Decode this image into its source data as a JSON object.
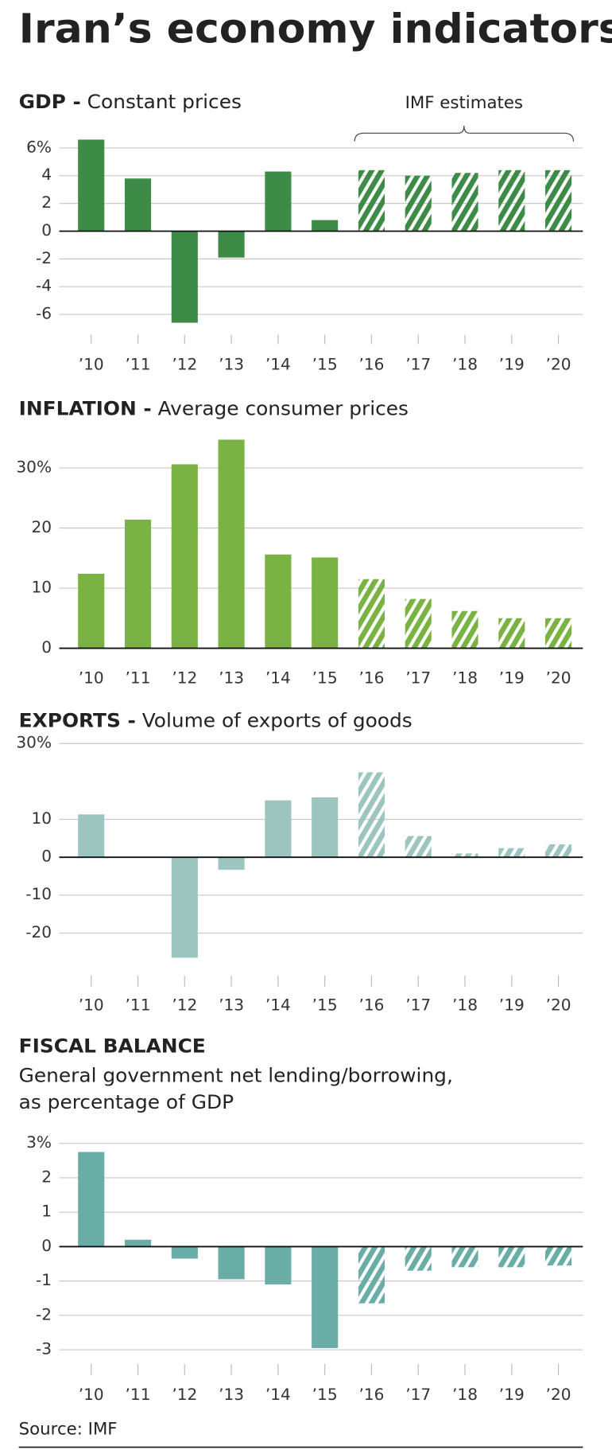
{
  "title": "Iran’s economy indicators",
  "source": "Source: IMF",
  "chart_data": [
    {
      "type": "bar",
      "title": "GDP -",
      "subtitle": "Constant prices",
      "annotation": "IMF estimates",
      "categories": [
        "’10",
        "’11",
        "’12",
        "’13",
        "’14",
        "’15",
        "’16",
        "’17",
        "’18",
        "’19",
        "’20"
      ],
      "values": [
        6.6,
        3.8,
        -6.6,
        -1.9,
        4.3,
        0.8,
        4.4,
        4.0,
        4.2,
        4.4,
        4.4
      ],
      "color": "#3d8b46",
      "hatch_start": "’16",
      "ylim": [
        -7,
        7
      ],
      "yticks": [
        {
          "value": 6,
          "label": "6%"
        },
        4,
        2,
        0,
        -2,
        -4,
        -6
      ],
      "grid": true
    },
    {
      "type": "bar",
      "title": "INFLATION -",
      "subtitle": "Average consumer prices",
      "categories": [
        "’10",
        "’11",
        "’12",
        "’13",
        "’14",
        "’15",
        "’16",
        "’17",
        "’18",
        "’19",
        "’20"
      ],
      "values": [
        12.4,
        21.4,
        30.6,
        34.7,
        15.6,
        15.1,
        11.5,
        8.2,
        6.2,
        5.0,
        5.0
      ],
      "color": "#7ab343",
      "hatch_start": "’16",
      "ylim": [
        0,
        35
      ],
      "yticks": [
        {
          "value": 30,
          "label": "30%"
        },
        20,
        10,
        0
      ],
      "grid": true
    },
    {
      "type": "bar",
      "title": "EXPORTS -",
      "subtitle": "Volume of exports of goods",
      "categories": [
        "’10",
        "’11",
        "’12",
        "’13",
        "’14",
        "’15",
        "’16",
        "’17",
        "’18",
        "’19",
        "’20"
      ],
      "values": [
        11.3,
        0,
        -26.5,
        -3.3,
        15.0,
        15.8,
        22.4,
        5.6,
        1.0,
        2.4,
        3.4
      ],
      "color": "#9dc5c0",
      "hatch_start": "’16",
      "ylim": [
        -30,
        32
      ],
      "yticks": [
        {
          "value": 30,
          "label": "30%"
        },
        10,
        0,
        -10,
        -20
      ],
      "grid": true
    },
    {
      "type": "bar",
      "title": "FISCAL BALANCE",
      "subtitle": [
        "General government net lending/borrowing,",
        "as percentage of GDP"
      ],
      "categories": [
        "’10",
        "’11",
        "’12",
        "’13",
        "’14",
        "’15",
        "’16",
        "’17",
        "’18",
        "’19",
        "’20"
      ],
      "values": [
        2.75,
        0.2,
        -0.35,
        -0.95,
        -1.1,
        -2.95,
        -1.65,
        -0.7,
        -0.6,
        -0.6,
        -0.55
      ],
      "color": "#6aada6",
      "hatch_start": "’16",
      "ylim": [
        -3.4,
        3.2
      ],
      "yticks": [
        {
          "value": 3,
          "label": "3%"
        },
        2,
        1,
        0,
        -1,
        -2,
        -3
      ],
      "grid": true
    }
  ]
}
